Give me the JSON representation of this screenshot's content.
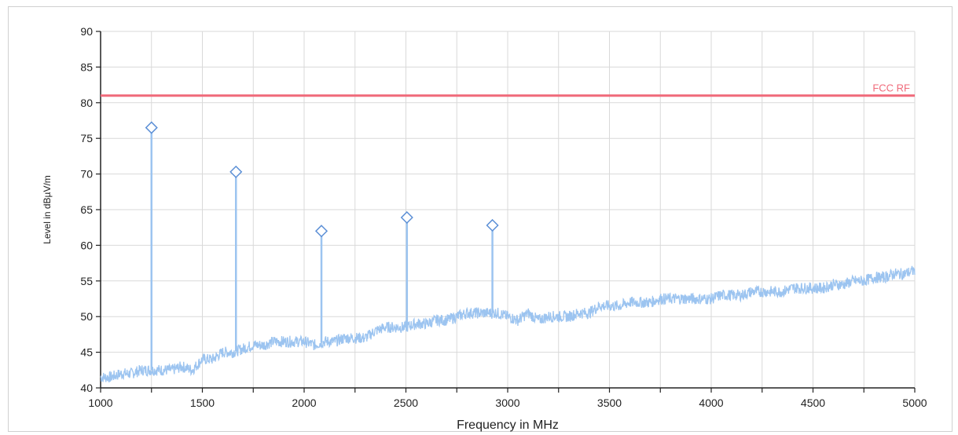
{
  "chart_data": {
    "type": "line",
    "xlabel": "Frequency in MHz",
    "ylabel": "Level in dBµV/m",
    "xlim": [
      1000,
      5000
    ],
    "ylim": [
      40,
      90
    ],
    "x_ticks": [
      1000,
      1500,
      2000,
      2500,
      3000,
      3500,
      4000,
      4500,
      5000
    ],
    "y_ticks": [
      40,
      45,
      50,
      55,
      60,
      65,
      70,
      75,
      80,
      85,
      90
    ],
    "grid": true,
    "limit_line": {
      "label": "FCC RF",
      "value": 81,
      "color": "#f06a7a"
    },
    "series": [
      {
        "color": "#9cc4f0",
        "x": [
          1000,
          1050,
          1100,
          1150,
          1200,
          1250,
          1300,
          1350,
          1400,
          1450,
          1500,
          1550,
          1600,
          1650,
          1700,
          1750,
          1800,
          1850,
          1900,
          1950,
          2000,
          2050,
          2100,
          2150,
          2200,
          2250,
          2300,
          2350,
          2400,
          2450,
          2500,
          2550,
          2600,
          2650,
          2700,
          2750,
          2800,
          2850,
          2900,
          2950,
          3000,
          3050,
          3100,
          3150,
          3200,
          3250,
          3300,
          3350,
          3400,
          3450,
          3500,
          3550,
          3600,
          3650,
          3700,
          3750,
          3800,
          3850,
          3900,
          3950,
          4000,
          4050,
          4100,
          4150,
          4200,
          4250,
          4300,
          4350,
          4400,
          4450,
          4500,
          4550,
          4600,
          4650,
          4700,
          4750,
          4800,
          4850,
          4900,
          4950,
          5000
        ],
        "y": [
          41.5,
          41.5,
          42,
          42,
          42.5,
          42.5,
          42.5,
          42.5,
          43,
          42.5,
          44,
          44,
          45,
          45,
          45.5,
          46,
          46,
          46.5,
          46.5,
          46.5,
          46.5,
          46,
          46.5,
          46.5,
          47,
          47,
          47,
          48,
          48.5,
          48.5,
          48.5,
          49,
          49,
          49.5,
          49.5,
          50,
          50.5,
          50.5,
          50.5,
          50.5,
          50,
          49.5,
          50.5,
          49.5,
          50,
          50,
          50,
          50.5,
          50.5,
          51.5,
          51.5,
          51.5,
          52,
          52,
          52,
          52.5,
          52.5,
          52.5,
          52.5,
          52.5,
          52.5,
          53,
          53,
          53,
          53.5,
          53.5,
          53.5,
          53.5,
          54,
          54,
          54,
          54,
          54.5,
          54.5,
          55,
          55,
          55.5,
          55.5,
          56,
          56,
          56.5
        ]
      }
    ],
    "peaks": [
      {
        "x": 1250,
        "y": 76.5
      },
      {
        "x": 1665,
        "y": 70.3
      },
      {
        "x": 2085,
        "y": 62
      },
      {
        "x": 2505,
        "y": 63.9
      },
      {
        "x": 2925,
        "y": 62.8
      }
    ]
  }
}
